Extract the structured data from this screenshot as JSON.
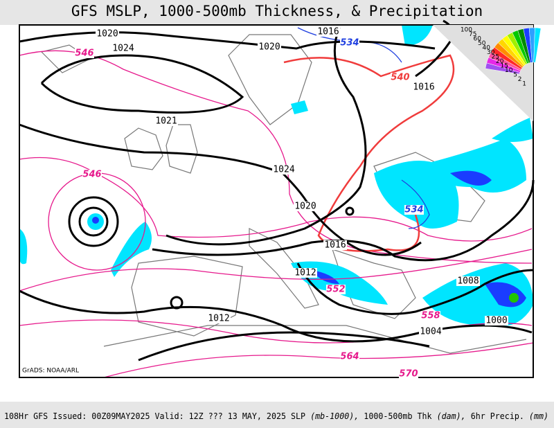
{
  "header": {
    "title": "GFS MSLP, 1000-500mb Thickness, & Precipitation"
  },
  "isobar_labels": [
    "1020",
    "1024",
    "1016",
    "1020",
    "1016",
    "1021",
    "1024",
    "1020",
    "1016",
    "1012",
    "1008",
    "1000",
    "1004",
    "1012"
  ],
  "thickness_labels": [
    "546",
    "534",
    "540",
    "546",
    "534",
    "552",
    "558",
    "564",
    "570"
  ],
  "legend": {
    "labels": [
      "100",
      "75",
      "60",
      "50",
      "40",
      "30",
      "25",
      "20",
      "15",
      "10",
      "5",
      "2",
      "1"
    ]
  },
  "credit": "GrADS: NOAA/ARL",
  "footer": {
    "run": "108Hr GFS Issued: 00Z09MAY2025 Valid: 12Z ??? 13 MAY, 2025",
    "slp": "SLP",
    "slp_unit": "(mb-1000),",
    "thk": "1000-500mb Thk",
    "thk_unit": "(dam),",
    "precip": "6hr Precip.",
    "precip_unit": "(mm)"
  }
}
